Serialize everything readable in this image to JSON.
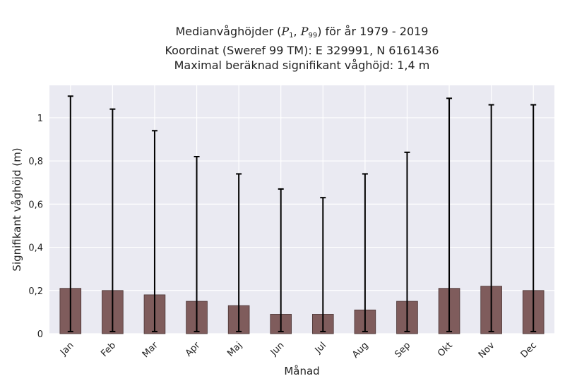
{
  "chart_data": {
    "type": "bar",
    "title_prefix": "Medianvåghöjder (",
    "title_p1": "P",
    "title_p1_sub": "1",
    "title_sep": ", ",
    "title_p2": "P",
    "title_p2_sub": "99",
    "title_suffix": ") för år 1979 - 2019",
    "subtitle_1": "Koordinat (Sweref 99 TM): E 329991, N 6161436",
    "subtitle_2": "Maximal beräknad signifikant våghöjd: 1,4 m",
    "xlabel": "Månad",
    "ylabel": "Signifikant våghöjd (m)",
    "categories": [
      "Jan",
      "Feb",
      "Mar",
      "Apr",
      "Maj",
      "Jun",
      "Jul",
      "Aug",
      "Sep",
      "Okt",
      "Nov",
      "Dec"
    ],
    "values": [
      0.21,
      0.2,
      0.18,
      0.15,
      0.13,
      0.09,
      0.09,
      0.11,
      0.15,
      0.21,
      0.22,
      0.2
    ],
    "error_low": [
      0.01,
      0.01,
      0.01,
      0.01,
      0.01,
      0.01,
      0.01,
      0.01,
      0.01,
      0.01,
      0.01,
      0.01
    ],
    "error_high": [
      1.1,
      1.04,
      0.94,
      0.82,
      0.74,
      0.67,
      0.63,
      0.74,
      0.84,
      1.09,
      1.06,
      1.06
    ],
    "ylim": [
      0,
      1.15
    ],
    "yticks": [
      0,
      0.2,
      0.4,
      0.6,
      0.8,
      1
    ],
    "ytick_labels": [
      "0",
      "0,2",
      "0,4",
      "0,6",
      "0,8",
      "1"
    ],
    "grid": true,
    "colors": {
      "bar": "#7f5c5c",
      "bar_edge": "#4a3434",
      "background": "#eaeaf2",
      "grid": "#ffffff",
      "errorbar": "#000000"
    }
  }
}
